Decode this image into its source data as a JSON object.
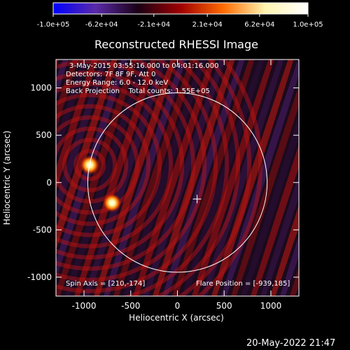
{
  "colorbar": {
    "ticks": [
      "-1.0e+05",
      "-6.2e+04",
      "-2.1e+04",
      "2.1e+04",
      "6.2e+04",
      "1.0e+05"
    ],
    "range": [
      -100000,
      100000
    ],
    "colors": [
      "#0000ff",
      "#5a2aa8",
      "#1a0014",
      "#a00000",
      "#ff6a00",
      "#fff6b0",
      "#ffffff"
    ]
  },
  "chart_data": {
    "type": "heatmap",
    "title": "Reconstructed RHESSI Image",
    "xlabel": "Heliocentric X (arcsec)",
    "ylabel": "Heliocentric Y (arcsec)",
    "xlim": [
      -1300,
      1300
    ],
    "ylim": [
      -1200,
      1300
    ],
    "xticks": [
      -1000,
      -500,
      0,
      500,
      1000
    ],
    "xtick_labels": [
      "-1000",
      "-500",
      "0",
      "500",
      "1000"
    ],
    "yticks": [
      1000,
      500,
      0,
      -500,
      -1000
    ],
    "ytick_labels": [
      "1000",
      "500",
      "0",
      "-500",
      "-1000"
    ],
    "colorbar_range": [
      -100000,
      100000
    ],
    "info_lines": [
      "3-May-2015 03:55:16.000 to 04:01:16.000",
      "Detectors: 7F 8F 9F, Att 0",
      "Energy Range: 6.0 - 12.0 keV",
      "Back Projection    Total counts: 1.55E+05"
    ],
    "spin_axis": "Spin Axis = [210,-174]",
    "flare_position": "Flare Position = [-939,185]",
    "solar_disk_radius": 960,
    "spin_axis_marker": [
      210,
      -174
    ],
    "sources": [
      {
        "x": -939,
        "y": 185,
        "intensity": 100000
      },
      {
        "x": -700,
        "y": -215,
        "intensity": 95000
      }
    ]
  },
  "footer": {
    "timestamp": "20-May-2022 21:47"
  }
}
